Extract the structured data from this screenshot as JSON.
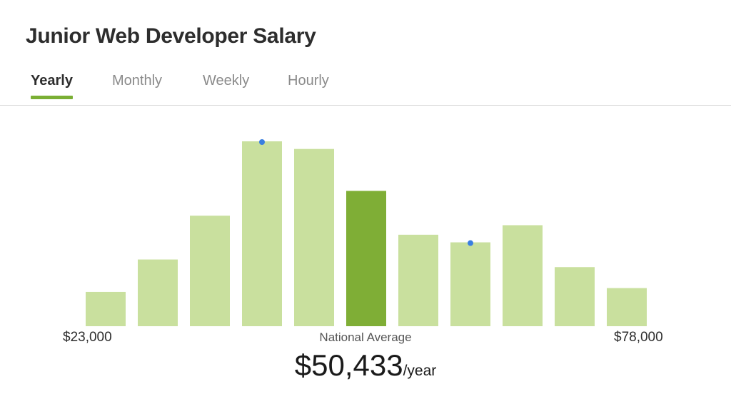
{
  "title": "Junior Web Developer Salary",
  "tabs": [
    {
      "label": "Yearly",
      "active": true
    },
    {
      "label": "Monthly",
      "active": false
    },
    {
      "label": "Weekly",
      "active": false
    },
    {
      "label": "Hourly",
      "active": false
    }
  ],
  "colors": {
    "bar": "#c9e09e",
    "bar_highlight": "#7fae36",
    "marker": "#3a7fe0",
    "tab_underline": "#7aaf34"
  },
  "chart_data": {
    "type": "bar",
    "title": "",
    "xlabel": "",
    "ylabel": "",
    "x_min_label": "$23,000",
    "x_max_label": "$78,000",
    "values": [
      18,
      35,
      58,
      97,
      93,
      71,
      48,
      44,
      53,
      31,
      20
    ],
    "highlight_index": 5,
    "marker_indices": [
      3,
      7
    ],
    "ylim": [
      0,
      100
    ],
    "grid": false
  },
  "summary": {
    "label": "National Average",
    "value": "$50,433",
    "unit": "/year"
  }
}
